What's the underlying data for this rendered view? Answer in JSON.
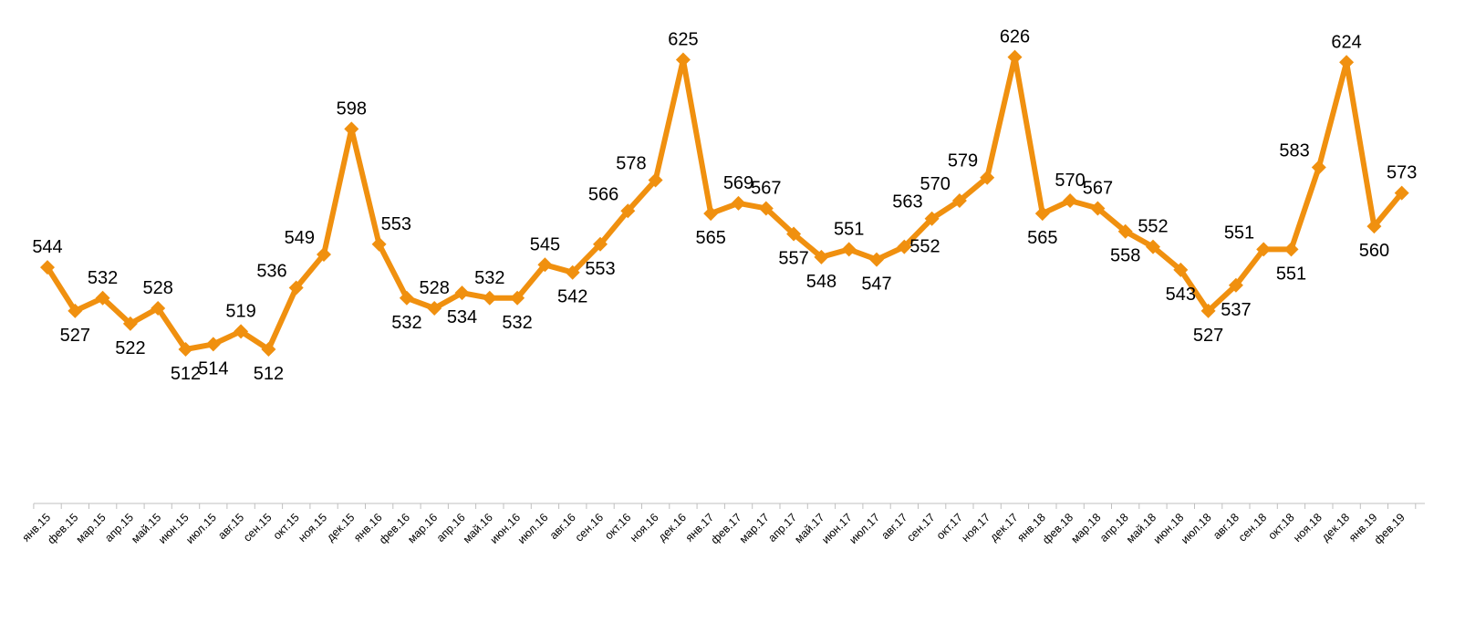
{
  "chart_data": {
    "type": "line",
    "title": "",
    "xlabel": "",
    "ylabel": "",
    "ylim": [
      400,
      630
    ],
    "grid": false,
    "legend": "none",
    "color": "#F0900F",
    "categories": [
      "янв.15",
      "фев.15",
      "мар.15",
      "апр.15",
      "май.15",
      "июн.15",
      "июл.15",
      "авг.15",
      "сен.15",
      "окт.15",
      "ноя.15",
      "дек.15",
      "янв.16",
      "фев.16",
      "мар.16",
      "апр.16",
      "май.16",
      "июн.16",
      "июл.16",
      "авг.16",
      "сен.16",
      "окт.16",
      "ноя.16",
      "дек.16",
      "янв.17",
      "фев.17",
      "мар.17",
      "апр.17",
      "май.17",
      "июн.17",
      "июл.17",
      "авг.17",
      "сен.17",
      "окт.17",
      "ноя.17",
      "дек.17",
      "янв.18",
      "фев.18",
      "мар.18",
      "апр.18",
      "май.18",
      "июн.18",
      "июл.18",
      "авг.18",
      "сен.18",
      "окт.18",
      "ноя.18",
      "дек.18",
      "янв.19",
      "фев.19"
    ],
    "values": [
      544,
      527,
      532,
      522,
      528,
      512,
      514,
      519,
      512,
      536,
      549,
      598,
      553,
      532,
      528,
      534,
      532,
      532,
      545,
      542,
      553,
      566,
      578,
      625,
      565,
      569,
      567,
      557,
      548,
      551,
      547,
      552,
      563,
      570,
      579,
      626,
      565,
      570,
      567,
      558,
      552,
      543,
      527,
      537,
      551,
      551,
      583,
      624,
      560,
      573
    ],
    "data_labels": [
      "544",
      "527",
      "532",
      "522",
      "528",
      "512",
      "514",
      "519",
      "512",
      "536",
      "549",
      "598",
      "553",
      "532",
      "528",
      "534",
      "532",
      "532",
      "545",
      "542",
      "553",
      "566",
      "578",
      "625",
      "565",
      "569",
      "567",
      "557",
      "548",
      "551",
      "547",
      "552",
      "563",
      "570",
      "579",
      "626",
      "565",
      "570",
      "567",
      "558",
      "552",
      "543",
      "527",
      "537",
      "551",
      "551",
      "583",
      "624",
      "560",
      "573"
    ],
    "label_positions": [
      "above",
      "below",
      "above",
      "below",
      "above",
      "below",
      "below",
      "above",
      "below",
      "left-above",
      "left-above",
      "above",
      "right-above",
      "below",
      "above",
      "below",
      "above",
      "below",
      "above",
      "below",
      "below",
      "left-above",
      "left-above",
      "above",
      "below",
      "above",
      "above",
      "below",
      "below",
      "above",
      "below",
      "right",
      "left-above",
      "left-above",
      "left-above",
      "above",
      "below",
      "above",
      "above",
      "below",
      "above",
      "below",
      "below",
      "below",
      "left-above",
      "below",
      "left-above",
      "above",
      "below",
      "above"
    ]
  }
}
